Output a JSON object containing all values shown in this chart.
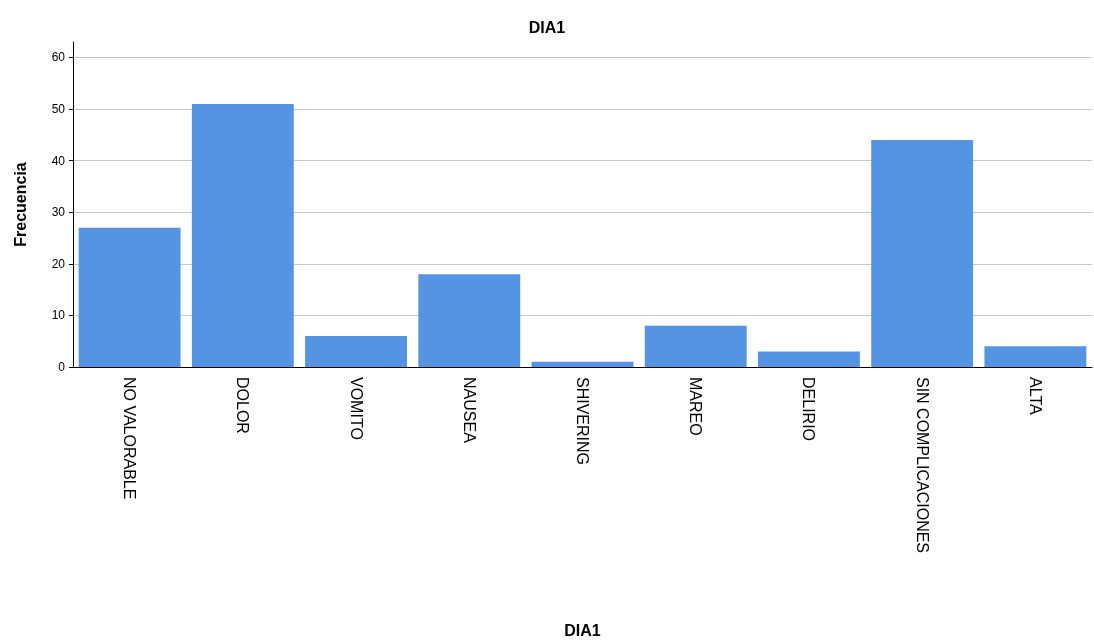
{
  "chart_data": {
    "type": "bar",
    "title": "DIA1",
    "xlabel": "DIA1",
    "ylabel": "Frecuencia",
    "categories": [
      "NO VALORABLE",
      "DOLOR",
      "VOMITO",
      "NAUSEA",
      "SHIVERING",
      "MAREO",
      "DELIRIO",
      "SIN COMPLICACIONES",
      "ALTA"
    ],
    "values": [
      27,
      51,
      6,
      18,
      1,
      8,
      3,
      44,
      4
    ],
    "color": "#5594e3",
    "ylim": [
      0,
      63
    ],
    "yticks": [
      0,
      10,
      20,
      30,
      40,
      50,
      60
    ],
    "grid": "y"
  }
}
